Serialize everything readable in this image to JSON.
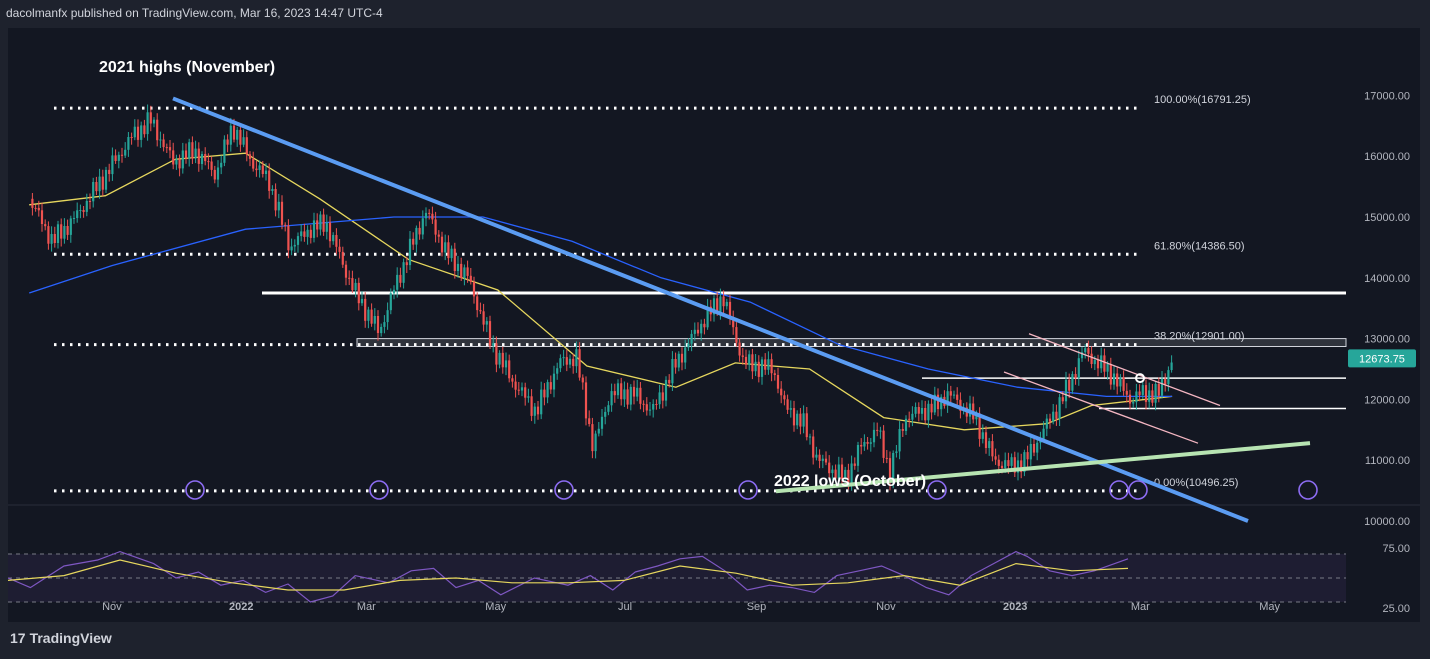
{
  "header": {
    "attribution": "dacolmanfx published on TradingView.com, Mar 16, 2023 14:47 UTC-4"
  },
  "footer": {
    "brand": "TradingView",
    "logo_glyph": "17"
  },
  "colors": {
    "background": "#131722",
    "page_border": "#1e222d",
    "bull": "#26a69a",
    "bear": "#ef5350",
    "ma_short": "#e6d75e",
    "ma_long": "#2962ff",
    "trendline_blue": "#5b9cf2",
    "support_green": "#b7e4b2",
    "channel_pink": "#f4b6c2",
    "rsi_line": "#7e57c2",
    "rsi_signal": "#e6d75e",
    "price_tag": "#26a69a",
    "event_icon": "#8c6cf2"
  },
  "chart_data": [
    {
      "type": "candlestick",
      "title": "",
      "xlabel": "",
      "ylabel": "",
      "ylim": [
        10000,
        17000
      ],
      "x_tick_labels": [
        "Nov",
        "2022",
        "Mar",
        "May",
        "Jul",
        "Sep",
        "Nov",
        "2023",
        "Mar",
        "May"
      ],
      "y_tick_labels": [
        "17000.00",
        "16000.00",
        "15000.00",
        "14000.00",
        "13000.00",
        "12000.00",
        "11000.00",
        "10000.00"
      ],
      "last_price": "12673.75",
      "close_path": [
        [
          "2021-09-23",
          15300
        ],
        [
          "2021-10-04",
          14600
        ],
        [
          "2021-10-15",
          15000
        ],
        [
          "2021-10-29",
          15700
        ],
        [
          "2021-11-10",
          16300
        ],
        [
          "2021-11-19",
          16600
        ],
        [
          "2021-11-30",
          15900
        ],
        [
          "2021-12-10",
          16100
        ],
        [
          "2021-12-20",
          15700
        ],
        [
          "2021-12-28",
          16500
        ],
        [
          "2022-01-06",
          15900
        ],
        [
          "2022-01-14",
          15600
        ],
        [
          "2022-01-24",
          14500
        ],
        [
          "2022-02-02",
          14800
        ],
        [
          "2022-02-10",
          14900
        ],
        [
          "2022-02-23",
          13800
        ],
        [
          "2022-03-07",
          13100
        ],
        [
          "2022-03-15",
          13900
        ],
        [
          "2022-03-29",
          15100
        ],
        [
          "2022-04-08",
          14400
        ],
        [
          "2022-04-18",
          14000
        ],
        [
          "2022-04-29",
          12900
        ],
        [
          "2022-05-09",
          12300
        ],
        [
          "2022-05-20",
          11800
        ],
        [
          "2022-05-31",
          12600
        ],
        [
          "2022-06-08",
          12700
        ],
        [
          "2022-06-16",
          11200
        ],
        [
          "2022-06-24",
          12100
        ],
        [
          "2022-07-05",
          12100
        ],
        [
          "2022-07-14",
          11800
        ],
        [
          "2022-07-25",
          12600
        ],
        [
          "2022-08-05",
          13200
        ],
        [
          "2022-08-16",
          13700
        ],
        [
          "2022-08-26",
          12600
        ],
        [
          "2022-09-09",
          12500
        ],
        [
          "2022-09-14",
          11900
        ],
        [
          "2022-09-23",
          11600
        ],
        [
          "2022-09-30",
          11000
        ],
        [
          "2022-10-13",
          10700
        ],
        [
          "2022-10-20",
          11200
        ],
        [
          "2022-10-28",
          11500
        ],
        [
          "2022-11-03",
          10800
        ],
        [
          "2022-11-10",
          11700
        ],
        [
          "2022-11-25",
          11900
        ],
        [
          "2022-11-30",
          12100
        ],
        [
          "2022-12-13",
          11700
        ],
        [
          "2022-12-22",
          11000
        ],
        [
          "2022-12-30",
          10900
        ],
        [
          "2023-01-06",
          11000
        ],
        [
          "2023-01-18",
          11700
        ],
        [
          "2023-01-26",
          12200
        ],
        [
          "2023-02-02",
          12800
        ],
        [
          "2023-02-16",
          12400
        ],
        [
          "2023-02-24",
          12000
        ],
        [
          "2023-03-02",
          12100
        ],
        [
          "2023-03-10",
          12100
        ],
        [
          "2023-03-16",
          12673
        ]
      ],
      "overlays": [
        {
          "name": "ma_short_approx",
          "points": [
            [
              "2021-09-23",
              15200
            ],
            [
              "2021-10-29",
              15350
            ],
            [
              "2021-12-01",
              15950
            ],
            [
              "2022-01-03",
              16050
            ],
            [
              "2022-02-07",
              15300
            ],
            [
              "2022-03-21",
              14300
            ],
            [
              "2022-05-02",
              13800
            ],
            [
              "2022-06-13",
              12550
            ],
            [
              "2022-07-25",
              12200
            ],
            [
              "2022-08-22",
              12600
            ],
            [
              "2022-09-26",
              12500
            ],
            [
              "2022-10-31",
              11700
            ],
            [
              "2022-12-08",
              11500
            ],
            [
              "2023-01-16",
              11600
            ],
            [
              "2023-02-06",
              11900
            ],
            [
              "2023-03-16",
              12050
            ]
          ]
        },
        {
          "name": "ma_long_approx",
          "points": [
            [
              "2021-09-23",
              13750
            ],
            [
              "2021-11-01",
              14200
            ],
            [
              "2022-01-03",
              14800
            ],
            [
              "2022-03-14",
              15000
            ],
            [
              "2022-04-25",
              15000
            ],
            [
              "2022-06-06",
              14600
            ],
            [
              "2022-07-18",
              14000
            ],
            [
              "2022-08-29",
              13600
            ],
            [
              "2022-10-10",
              12900
            ],
            [
              "2022-11-21",
              12500
            ],
            [
              "2023-01-02",
              12200
            ],
            [
              "2023-02-13",
              12050
            ],
            [
              "2023-03-16",
              12050
            ]
          ]
        }
      ],
      "levels": [
        {
          "label": "100.00%(16791.25)",
          "value": 16791.25
        },
        {
          "label": "61.80%(14386.50)",
          "value": 14386.5
        },
        {
          "label": "38.20%(12901.00)",
          "value": 12901
        },
        {
          "label": "0.00%(10496.25)",
          "value": 10496.25
        }
      ],
      "horizontal_lines": [
        13750,
        12350,
        11850
      ],
      "annotations": [
        "2021 highs (November)",
        "2022 lows (October)"
      ]
    },
    {
      "type": "line",
      "title": "",
      "xlabel": "",
      "ylabel": "",
      "ylim": [
        0,
        100
      ],
      "y_tick_labels": [
        "75.00",
        "25.00"
      ],
      "bands": [
        70,
        50,
        30
      ],
      "series": [
        {
          "values": [
            [
              0.0,
              50
            ],
            [
              0.02,
              42
            ],
            [
              0.05,
              60
            ],
            [
              0.08,
              65
            ],
            [
              0.1,
              72
            ],
            [
              0.13,
              62
            ],
            [
              0.15,
              50
            ],
            [
              0.17,
              55
            ],
            [
              0.19,
              44
            ],
            [
              0.21,
              48
            ],
            [
              0.23,
              38
            ],
            [
              0.25,
              45
            ],
            [
              0.27,
              30
            ],
            [
              0.29,
              35
            ],
            [
              0.31,
              52
            ],
            [
              0.34,
              46
            ],
            [
              0.36,
              56
            ],
            [
              0.38,
              58
            ],
            [
              0.4,
              42
            ],
            [
              0.42,
              48
            ],
            [
              0.44,
              36
            ],
            [
              0.47,
              50
            ],
            [
              0.5,
              44
            ],
            [
              0.52,
              52
            ],
            [
              0.54,
              40
            ],
            [
              0.56,
              55
            ],
            [
              0.58,
              60
            ],
            [
              0.6,
              66
            ],
            [
              0.62,
              68
            ],
            [
              0.64,
              56
            ],
            [
              0.66,
              40
            ],
            [
              0.68,
              44
            ],
            [
              0.7,
              42
            ],
            [
              0.72,
              38
            ],
            [
              0.74,
              52
            ],
            [
              0.76,
              56
            ],
            [
              0.78,
              60
            ],
            [
              0.8,
              52
            ],
            [
              0.82,
              42
            ],
            [
              0.84,
              36
            ],
            [
              0.86,
              52
            ],
            [
              0.88,
              62
            ],
            [
              0.9,
              72
            ],
            [
              0.91,
              68
            ],
            [
              0.93,
              56
            ],
            [
              0.95,
              52
            ],
            [
              0.97,
              56
            ],
            [
              1.0,
              66
            ]
          ]
        },
        {
          "values": [
            [
              0.0,
              48
            ],
            [
              0.05,
              52
            ],
            [
              0.1,
              65
            ],
            [
              0.15,
              54
            ],
            [
              0.2,
              46
            ],
            [
              0.25,
              40
            ],
            [
              0.3,
              40
            ],
            [
              0.35,
              48
            ],
            [
              0.4,
              50
            ],
            [
              0.45,
              46
            ],
            [
              0.5,
              46
            ],
            [
              0.55,
              48
            ],
            [
              0.6,
              60
            ],
            [
              0.65,
              54
            ],
            [
              0.7,
              44
            ],
            [
              0.75,
              46
            ],
            [
              0.8,
              52
            ],
            [
              0.85,
              44
            ],
            [
              0.9,
              62
            ],
            [
              0.95,
              56
            ],
            [
              1.0,
              58
            ]
          ]
        }
      ]
    }
  ]
}
